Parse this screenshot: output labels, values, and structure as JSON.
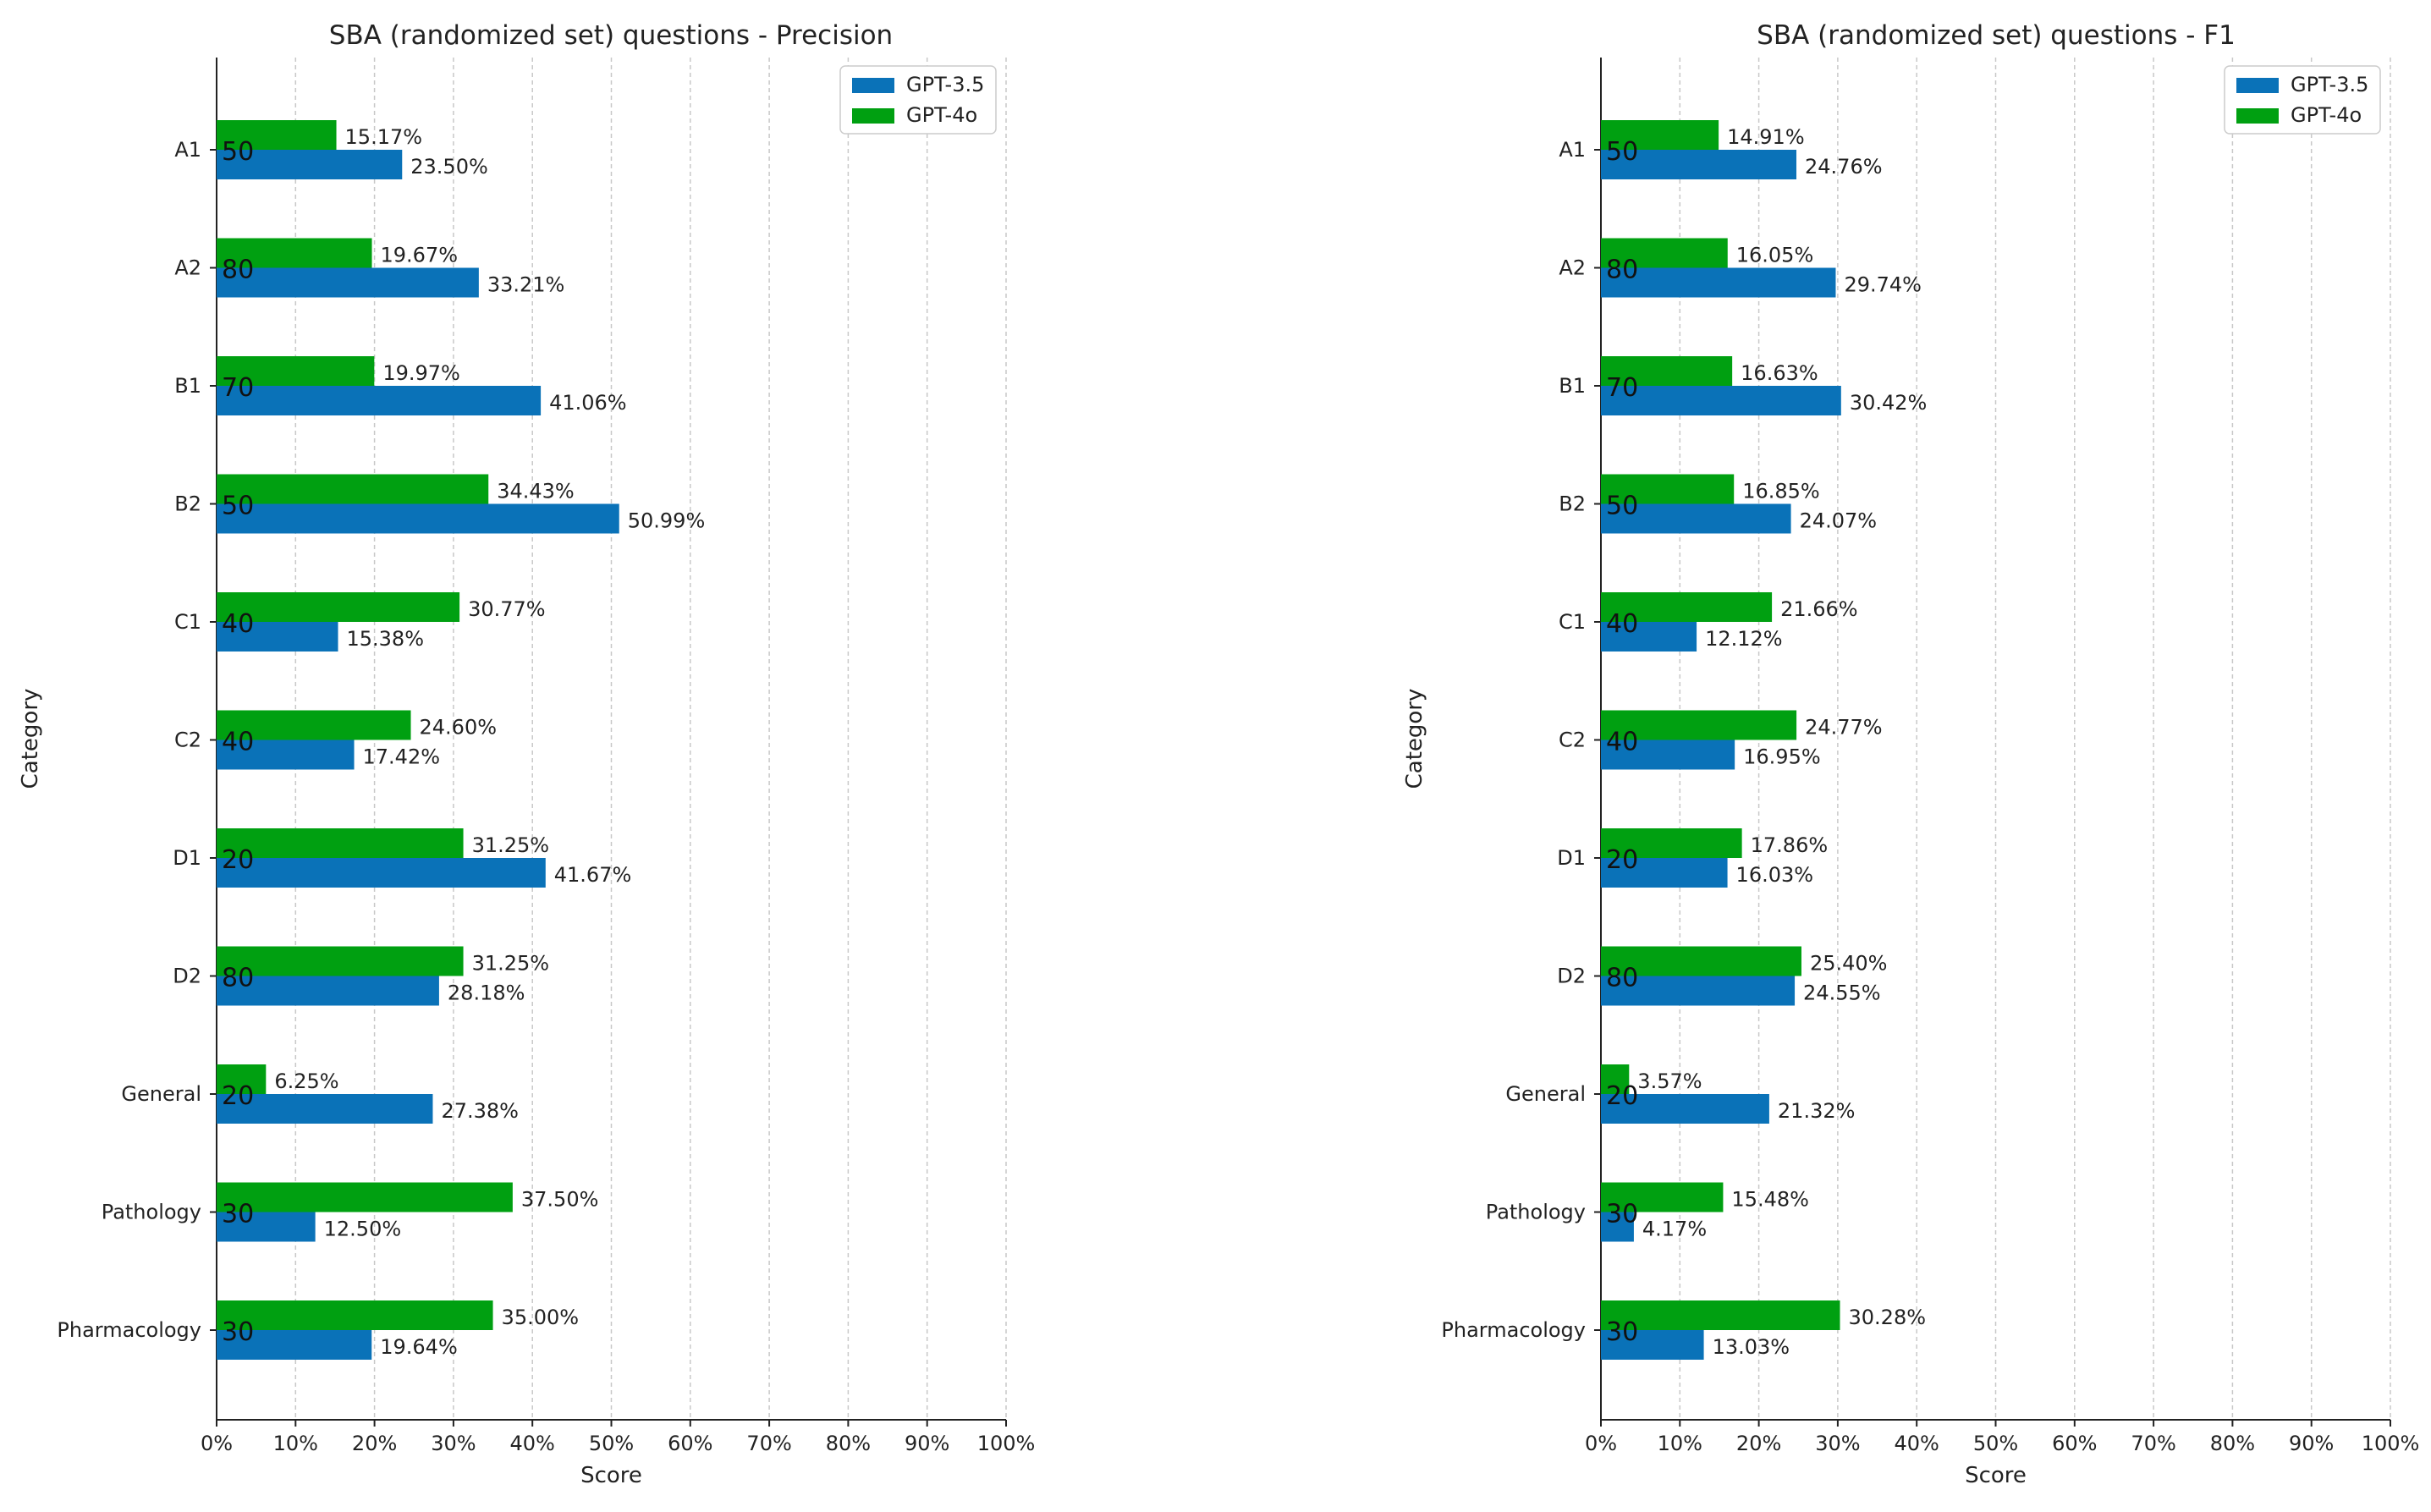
{
  "chart_data": [
    {
      "type": "bar",
      "orientation": "horizontal",
      "title": "SBA (randomized set) questions - Precision",
      "xlabel": "Score",
      "ylabel": "Category",
      "xlim": [
        0,
        100
      ],
      "x_ticks": [
        "0%",
        "10%",
        "20%",
        "30%",
        "40%",
        "50%",
        "60%",
        "70%",
        "80%",
        "90%",
        "100%"
      ],
      "grid": "vertical-dashed",
      "legend_position": "top-right",
      "categories": [
        "A1",
        "A2",
        "B1",
        "B2",
        "C1",
        "C2",
        "D1",
        "D2",
        "General",
        "Pathology",
        "Pharmacology"
      ],
      "counts": [
        "50",
        "80",
        "70",
        "50",
        "40",
        "40",
        "20",
        "80",
        "20",
        "30",
        "30"
      ],
      "series": [
        {
          "name": "GPT-3.5",
          "color": "#0a72b8",
          "values": [
            23.5,
            33.21,
            41.06,
            50.99,
            15.38,
            17.42,
            41.67,
            28.18,
            27.38,
            12.5,
            19.64
          ],
          "labels": [
            "23.50%",
            "33.21%",
            "41.06%",
            "50.99%",
            "15.38%",
            "17.42%",
            "41.67%",
            "28.18%",
            "27.38%",
            "12.50%",
            "19.64%"
          ]
        },
        {
          "name": "GPT-4o",
          "color": "#00a011",
          "values": [
            15.17,
            19.67,
            19.97,
            34.43,
            30.77,
            24.6,
            31.25,
            31.25,
            6.25,
            37.5,
            35.0
          ],
          "labels": [
            "15.17%",
            "19.67%",
            "19.97%",
            "34.43%",
            "30.77%",
            "24.60%",
            "31.25%",
            "31.25%",
            "6.25%",
            "37.50%",
            "35.00%"
          ]
        }
      ]
    },
    {
      "type": "bar",
      "orientation": "horizontal",
      "title": "SBA (randomized set) questions - F1",
      "xlabel": "Score",
      "ylabel": "Category",
      "xlim": [
        0,
        100
      ],
      "x_ticks": [
        "0%",
        "10%",
        "20%",
        "30%",
        "40%",
        "50%",
        "60%",
        "70%",
        "80%",
        "90%",
        "100%"
      ],
      "grid": "vertical-dashed",
      "legend_position": "top-right",
      "categories": [
        "A1",
        "A2",
        "B1",
        "B2",
        "C1",
        "C2",
        "D1",
        "D2",
        "General",
        "Pathology",
        "Pharmacology"
      ],
      "counts": [
        "50",
        "80",
        "70",
        "50",
        "40",
        "40",
        "20",
        "80",
        "20",
        "30",
        "30"
      ],
      "series": [
        {
          "name": "GPT-3.5",
          "color": "#0a72b8",
          "values": [
            24.76,
            29.74,
            30.42,
            24.07,
            12.12,
            16.95,
            16.03,
            24.55,
            21.32,
            4.17,
            13.03
          ],
          "labels": [
            "24.76%",
            "29.74%",
            "30.42%",
            "24.07%",
            "12.12%",
            "16.95%",
            "16.03%",
            "24.55%",
            "21.32%",
            "4.17%",
            "13.03%"
          ]
        },
        {
          "name": "GPT-4o",
          "color": "#00a011",
          "values": [
            14.91,
            16.05,
            16.63,
            16.85,
            21.66,
            24.77,
            17.86,
            25.4,
            3.57,
            15.48,
            30.28
          ],
          "labels": [
            "14.91%",
            "16.05%",
            "16.63%",
            "16.85%",
            "21.66%",
            "24.77%",
            "17.86%",
            "25.40%",
            "3.57%",
            "15.48%",
            "30.28%"
          ]
        }
      ]
    }
  ]
}
